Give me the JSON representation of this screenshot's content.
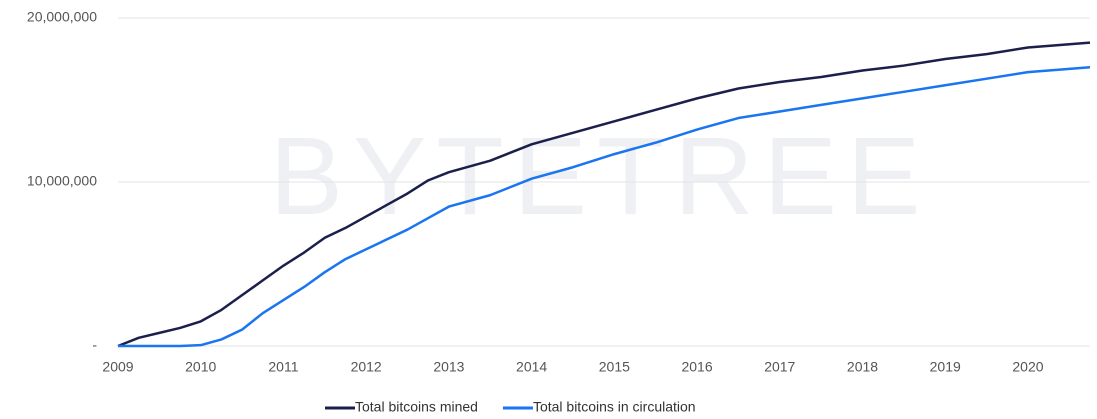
{
  "chart_data": {
    "type": "line",
    "watermark": "BYTETREE",
    "x": [
      2009,
      2009.25,
      2009.5,
      2009.75,
      2010,
      2010.25,
      2010.5,
      2010.75,
      2011,
      2011.25,
      2011.5,
      2011.75,
      2012,
      2012.25,
      2012.5,
      2012.75,
      2013,
      2013.5,
      2014,
      2014.5,
      2015,
      2015.5,
      2016,
      2016.5,
      2017,
      2017.5,
      2018,
      2018.5,
      2019,
      2019.5,
      2020,
      2020.5,
      2020.75
    ],
    "series": [
      {
        "name": "Total bitcoins mined",
        "color": "#1b1f4b",
        "values": [
          0,
          500000,
          800000,
          1100000,
          1500000,
          2200000,
          3100000,
          4000000,
          4900000,
          5700000,
          6600000,
          7200000,
          7900000,
          8600000,
          9300000,
          10100000,
          10600000,
          11300000,
          12300000,
          13000000,
          13700000,
          14400000,
          15100000,
          15700000,
          16100000,
          16400000,
          16800000,
          17100000,
          17500000,
          17800000,
          18200000,
          18400000,
          18500000
        ]
      },
      {
        "name": "Total bitcoins in circulation",
        "color": "#1a75f0",
        "values": [
          0,
          0,
          0,
          0,
          50000,
          400000,
          1000000,
          2000000,
          2800000,
          3600000,
          4500000,
          5300000,
          5900000,
          6500000,
          7100000,
          7800000,
          8500000,
          9200000,
          10200000,
          10900000,
          11700000,
          12400000,
          13200000,
          13900000,
          14300000,
          14700000,
          15100000,
          15500000,
          15900000,
          16300000,
          16700000,
          16900000,
          17000000
        ]
      }
    ],
    "xlim": [
      2009,
      2020.75
    ],
    "xticks": [
      2009,
      2010,
      2011,
      2012,
      2013,
      2014,
      2015,
      2016,
      2017,
      2018,
      2019,
      2020
    ],
    "ylim": [
      0,
      20000000
    ],
    "yticks": [
      {
        "value": 0,
        "label": "-"
      },
      {
        "value": 10000000,
        "label": "10,000,000"
      },
      {
        "value": 20000000,
        "label": "20,000,000"
      }
    ],
    "grid": true,
    "legend": "bottom"
  }
}
